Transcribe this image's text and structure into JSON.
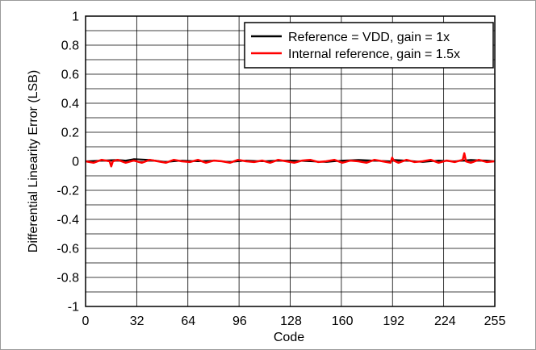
{
  "chart_data": {
    "type": "line",
    "title": "",
    "xlabel": "Code",
    "ylabel": "Differential Linearity Error (LSB)",
    "xlim": [
      0,
      255
    ],
    "ylim": [
      -1,
      1
    ],
    "x_ticks": [
      0,
      32,
      64,
      96,
      128,
      160,
      192,
      224,
      255
    ],
    "x_tick_labels": [
      "0",
      "32",
      "64",
      "96",
      "128",
      "160",
      "192",
      "224",
      "255"
    ],
    "y_ticks": [
      1,
      0.8,
      0.6,
      0.4,
      0.2,
      0,
      -0.2,
      -0.4,
      -0.6,
      -0.8,
      -1
    ],
    "y_tick_labels": [
      "1",
      "0.8",
      "0.6",
      "0.4",
      "0.2",
      "0",
      "-0.2",
      "-0.4",
      "-0.6",
      "-0.8",
      "-1"
    ],
    "grid": true,
    "x_grid_divisions": 8,
    "y_grid_divisions": 20,
    "legend_position": "top-right",
    "series": [
      {
        "name": "Reference = VDD, gain = 1x",
        "color": "#000000",
        "x": [
          0,
          10,
          20,
          25,
          30,
          40,
          50,
          60,
          70,
          80,
          90,
          100,
          110,
          120,
          130,
          140,
          150,
          160,
          170,
          180,
          190,
          192,
          200,
          210,
          220,
          230,
          240,
          250,
          255
        ],
        "y": [
          0,
          0.005,
          0.01,
          0.005,
          0.015,
          0.01,
          -0.005,
          0.005,
          0,
          0.005,
          -0.005,
          0.005,
          0,
          0.005,
          0.005,
          0,
          -0.005,
          0.005,
          0.01,
          0.005,
          0,
          0.01,
          0.005,
          -0.005,
          0.005,
          0,
          0.01,
          0.005,
          0
        ]
      },
      {
        "name": "Internal reference, gain = 1.5x",
        "color": "#ff0000",
        "x": [
          0,
          5,
          10,
          15,
          16,
          17,
          20,
          25,
          30,
          35,
          40,
          45,
          50,
          55,
          60,
          65,
          70,
          75,
          80,
          85,
          90,
          95,
          100,
          105,
          110,
          115,
          120,
          125,
          130,
          135,
          140,
          145,
          150,
          155,
          160,
          165,
          170,
          175,
          180,
          185,
          190,
          191,
          192,
          195,
          200,
          205,
          210,
          215,
          220,
          225,
          230,
          235,
          236,
          237,
          240,
          245,
          250,
          255
        ],
        "y": [
          0,
          -0.01,
          0.01,
          0,
          -0.035,
          0,
          0.01,
          -0.01,
          0.005,
          -0.01,
          0.01,
          0,
          -0.01,
          0.01,
          0,
          -0.005,
          0.01,
          -0.01,
          0.005,
          0,
          -0.01,
          0.01,
          0,
          -0.005,
          0.005,
          -0.01,
          0.01,
          0,
          -0.01,
          0.005,
          0.01,
          -0.005,
          0,
          0.01,
          -0.01,
          0.005,
          0,
          -0.01,
          0.01,
          0,
          -0.01,
          0.025,
          0.005,
          -0.01,
          0.01,
          -0.005,
          0,
          0.01,
          -0.01,
          0.005,
          -0.005,
          0.01,
          0.055,
          0,
          -0.01,
          0.01,
          -0.005,
          0
        ]
      }
    ]
  }
}
